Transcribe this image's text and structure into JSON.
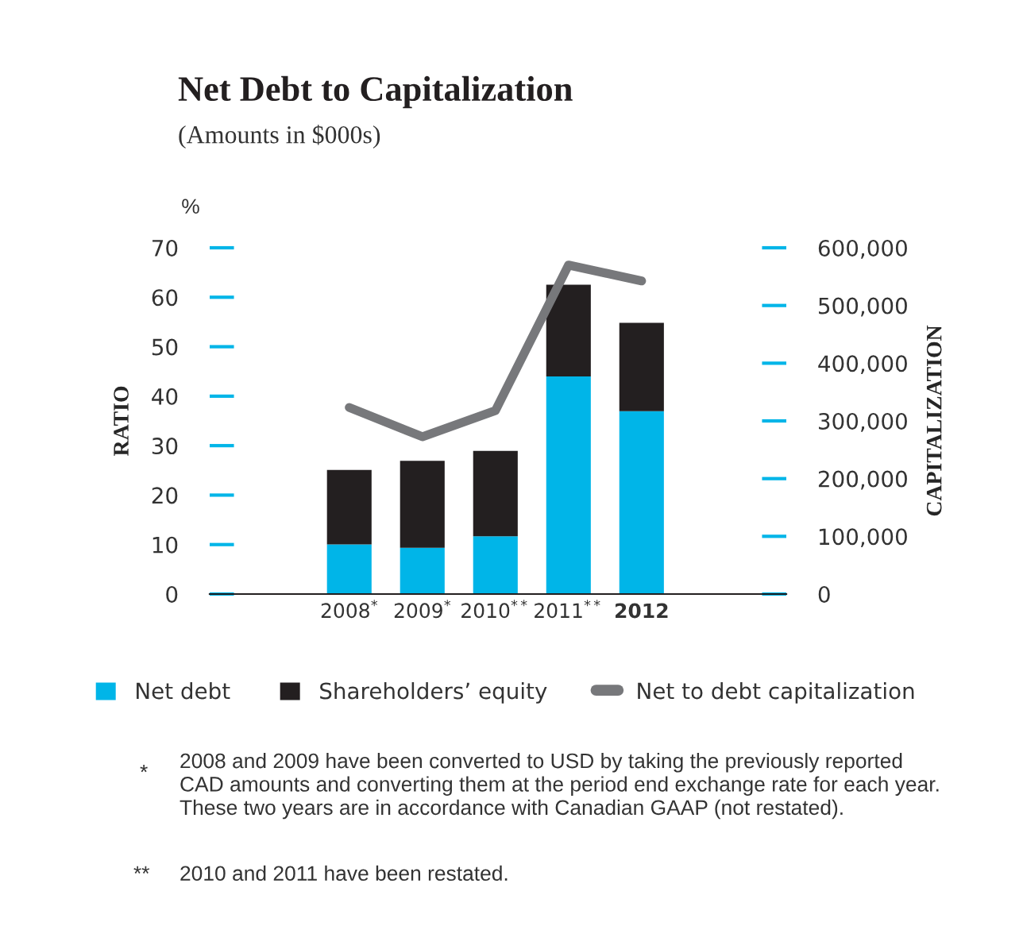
{
  "chart_data": {
    "type": "bar",
    "stacked": true,
    "title": "Net Debt to Capitalization",
    "subtitle": "(Amounts in $000s)",
    "ylabel": "RATIO",
    "y2label": "CAPITALIZATION",
    "categories": [
      "2008$^{*}$",
      "2009$^{*}$",
      "2010$^{**}$",
      "2011$^{**}$",
      "2012"
    ],
    "series": [
      {
        "name": "Net debt",
        "color": "#00b5e8",
        "axis": "y2",
        "values": [
          86000,
          80000,
          100000,
          377000,
          317000
        ]
      },
      {
        "name": "Shareholders’ equity",
        "color": "#231f20",
        "axis": "y2",
        "values": [
          129000,
          151000,
          148000,
          159000,
          153000
        ]
      },
      {
        "name": "Net to debt capitalization",
        "type": "line",
        "color": "#77787b",
        "axis": "y",
        "values": [
          37.7,
          31.8,
          37.1,
          66.5,
          63.3
        ]
      }
    ],
    "ylim": [
      0,
      70
    ],
    "yticks": [
      0,
      10,
      20,
      30,
      40,
      50,
      60,
      70
    ],
    "y2lim": [
      0,
      600000
    ],
    "y2ticks": [
      0,
      {
        "value": 100000,
        "label": "100,000"
      },
      {
        "value": 200000,
        "label": "200,000"
      },
      {
        "value": 300000,
        "label": "300,000"
      },
      {
        "value": 400000,
        "label": "400,000"
      },
      {
        "value": 500000,
        "label": "500,000"
      },
      {
        "value": 600000,
        "label": "600,000"
      }
    ],
    "legend": "bottom",
    "grid": false,
    "marker": "none",
    "annotations": [
      "%",
      "*",
      "2008 and 2009 have been converted to USD by taking the previously reported\nCAD amounts and converting them at the period end exchange rate for each year.\nThese two years are in accordance with Canadian GAAP (not restated).",
      "**",
      "2010 and 2011 have been restated."
    ]
  }
}
